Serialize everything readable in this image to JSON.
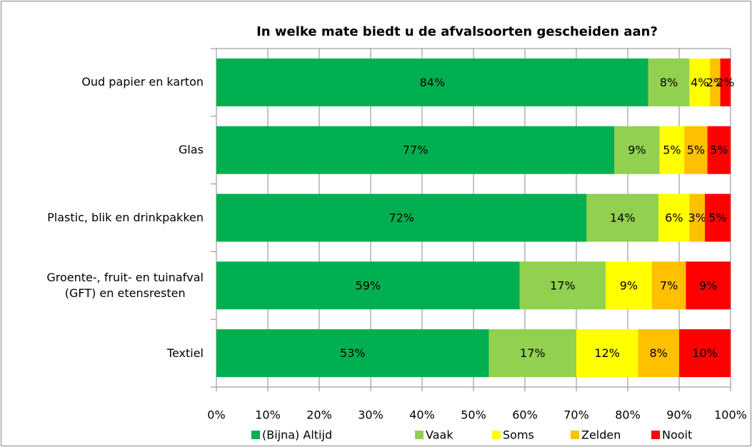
{
  "chart_data": {
    "type": "stacked_barh",
    "title": "In welke mate biedt u de afvalsoorten gescheiden aan?",
    "categories": [
      "Oud papier en karton",
      "Glas",
      "Plastic, blik en drinkpakken",
      "Groente-, fruit- en tuinafval\n(GFT) en etensresten",
      "Textiel"
    ],
    "series": [
      {
        "name": "(Bijna) Altijd",
        "color": "#00b050",
        "values": [
          84,
          77.4,
          72,
          59,
          53
        ],
        "value_labels": [
          "84%",
          "77%",
          "72%",
          "59%",
          "53%"
        ]
      },
      {
        "name": "Vaak",
        "color": "#92d050",
        "values": [
          8,
          8.8,
          14,
          16.7,
          17
        ],
        "value_labels": [
          "8%",
          "9%",
          "14%",
          "17%",
          "17%"
        ]
      },
      {
        "name": "Soms",
        "color": "#ffff00",
        "values": [
          4,
          4.8,
          6,
          9,
          12
        ],
        "value_labels": [
          "4%",
          "5%",
          "6%",
          "9%",
          "12%"
        ]
      },
      {
        "name": "Zelden",
        "color": "#ffc000",
        "values": [
          2,
          4.5,
          3,
          6.6,
          8
        ],
        "value_labels": [
          "2%",
          "5%",
          "3%",
          "7%",
          "8%"
        ]
      },
      {
        "name": "Nooit",
        "color": "#ff0000",
        "values": [
          2,
          4.5,
          5,
          8.7,
          10
        ],
        "value_labels": [
          "2%",
          "5%",
          "5%",
          "9%",
          "10%"
        ]
      }
    ],
    "xlim": [
      0,
      100
    ],
    "xticks": [
      {
        "value": 0,
        "label": "0%"
      },
      {
        "value": 10,
        "label": "10%"
      },
      {
        "value": 20,
        "label": "20%"
      },
      {
        "value": 30,
        "label": "30%"
      },
      {
        "value": 40,
        "label": "40%"
      },
      {
        "value": 50,
        "label": "50%"
      },
      {
        "value": 60,
        "label": "60%"
      },
      {
        "value": 70,
        "label": "70%"
      },
      {
        "value": 80,
        "label": "80%"
      },
      {
        "value": 90,
        "label": "90%"
      },
      {
        "value": 100,
        "label": "100%"
      }
    ],
    "grid": true,
    "legend": "bottom"
  }
}
